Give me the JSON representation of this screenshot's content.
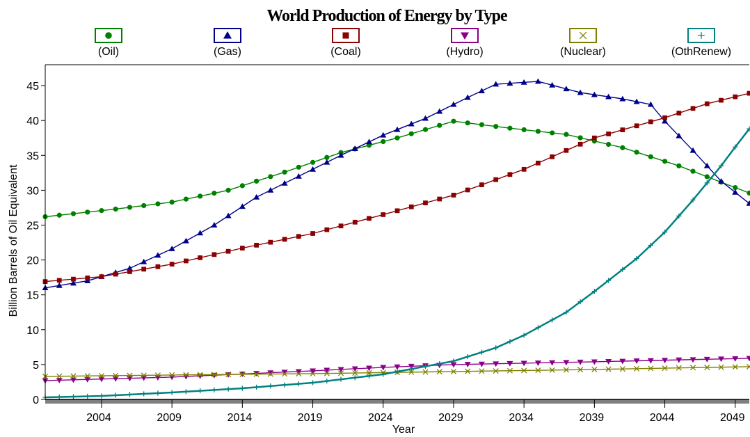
{
  "chart_data": {
    "type": "line",
    "title": "World Production of Energy by Type",
    "xlabel": "Year",
    "ylabel": "Billion Barrels of Oil Equivalent",
    "xlim": [
      2000,
      2050
    ],
    "ylim": [
      0,
      48
    ],
    "x_ticks": [
      2004,
      2009,
      2014,
      2019,
      2024,
      2029,
      2034,
      2039,
      2044,
      2049
    ],
    "y_ticks": [
      0,
      5,
      10,
      15,
      20,
      25,
      30,
      35,
      40,
      45
    ],
    "legend_position": "top",
    "series": [
      {
        "name": "(Oil)",
        "color": "#008000",
        "marker": "circle",
        "points": [
          [
            2000,
            26.2
          ],
          [
            2005,
            27.3
          ],
          [
            2009,
            28.3
          ],
          [
            2013,
            30.0
          ],
          [
            2017,
            32.6
          ],
          [
            2021,
            35.4
          ],
          [
            2025,
            37.5
          ],
          [
            2029,
            39.9
          ],
          [
            2033,
            38.9
          ],
          [
            2037,
            38.0
          ],
          [
            2041,
            36.1
          ],
          [
            2045,
            33.5
          ],
          [
            2050,
            29.6
          ]
        ]
      },
      {
        "name": "(Gas)",
        "color": "#00008B",
        "marker": "triangle-up",
        "points": [
          [
            2000,
            16.0
          ],
          [
            2003,
            17.0
          ],
          [
            2006,
            18.8
          ],
          [
            2009,
            21.6
          ],
          [
            2012,
            25.0
          ],
          [
            2015,
            29.0
          ],
          [
            2018,
            32.0
          ],
          [
            2021,
            35.0
          ],
          [
            2024,
            37.9
          ],
          [
            2027,
            40.3
          ],
          [
            2030,
            43.3
          ],
          [
            2032,
            45.2
          ],
          [
            2035,
            45.6
          ],
          [
            2038,
            44.0
          ],
          [
            2041,
            43.1
          ],
          [
            2043,
            42.3
          ],
          [
            2044,
            39.9
          ],
          [
            2046,
            35.7
          ],
          [
            2048,
            31.3
          ],
          [
            2050,
            28.1
          ]
        ]
      },
      {
        "name": "(Coal)",
        "color": "#8B0000",
        "marker": "square",
        "points": [
          [
            2000,
            16.9
          ],
          [
            2004,
            17.6
          ],
          [
            2009,
            19.4
          ],
          [
            2014,
            21.7
          ],
          [
            2019,
            23.8
          ],
          [
            2024,
            26.5
          ],
          [
            2029,
            29.3
          ],
          [
            2034,
            33.0
          ],
          [
            2039,
            37.5
          ],
          [
            2044,
            40.4
          ],
          [
            2047,
            42.4
          ],
          [
            2050,
            43.9
          ]
        ]
      },
      {
        "name": "(Hydro)",
        "color": "#8B008B",
        "marker": "triangle-down",
        "points": [
          [
            2000,
            2.7
          ],
          [
            2009,
            3.2
          ],
          [
            2019,
            4.1
          ],
          [
            2024,
            4.6
          ],
          [
            2029,
            5.0
          ],
          [
            2039,
            5.4
          ],
          [
            2050,
            5.9
          ]
        ]
      },
      {
        "name": "(Nuclear)",
        "color": "#808000",
        "marker": "x",
        "points": [
          [
            2000,
            3.3
          ],
          [
            2009,
            3.5
          ],
          [
            2019,
            3.7
          ],
          [
            2029,
            4.0
          ],
          [
            2039,
            4.3
          ],
          [
            2050,
            4.7
          ]
        ]
      },
      {
        "name": "(OthRenew)",
        "color": "#008080",
        "marker": "plus",
        "points": [
          [
            2000,
            0.3
          ],
          [
            2004,
            0.5
          ],
          [
            2009,
            1.0
          ],
          [
            2014,
            1.6
          ],
          [
            2019,
            2.4
          ],
          [
            2024,
            3.6
          ],
          [
            2029,
            5.5
          ],
          [
            2032,
            7.4
          ],
          [
            2034,
            9.2
          ],
          [
            2037,
            12.5
          ],
          [
            2039,
            15.5
          ],
          [
            2042,
            20.2
          ],
          [
            2044,
            24.0
          ],
          [
            2046,
            28.6
          ],
          [
            2048,
            33.5
          ],
          [
            2049,
            36.2
          ],
          [
            2050,
            38.8
          ]
        ]
      }
    ]
  }
}
